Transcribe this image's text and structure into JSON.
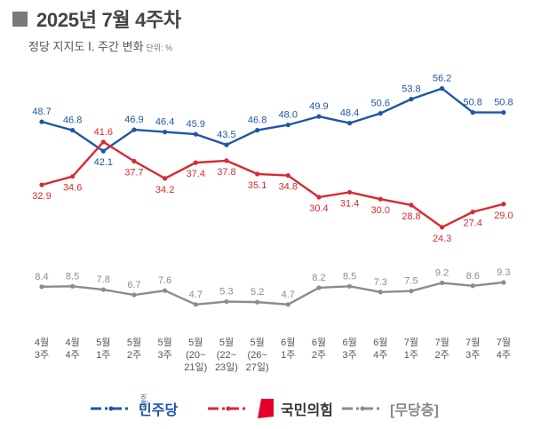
{
  "header": {
    "title": "2025년 7월 4주차",
    "subtitle": "정당 지지도 Ⅰ. 주간 변화",
    "unit": "단위: %"
  },
  "colors": {
    "democratic": "#1f56a6",
    "ppp": "#d62b33",
    "independent": "#8c8c8c"
  },
  "chart_data": {
    "type": "line",
    "title": "정당 지지도 Ⅰ. 주간 변화",
    "ylabel": "단위: %",
    "x": [
      [
        "4월",
        "3주"
      ],
      [
        "4월",
        "4주"
      ],
      [
        "5월",
        "1주"
      ],
      [
        "5월",
        "2주"
      ],
      [
        "5월",
        "3주"
      ],
      [
        "5월",
        "(20~",
        "21일)"
      ],
      [
        "5월",
        "(22~",
        "23일)"
      ],
      [
        "5월",
        "(26~",
        "27일)"
      ],
      [
        "6월",
        "1주"
      ],
      [
        "6월",
        "2주"
      ],
      [
        "6월",
        "3주"
      ],
      [
        "6월",
        "4주"
      ],
      [
        "7월",
        "1주"
      ],
      [
        "7월",
        "2주"
      ],
      [
        "7월",
        "3주"
      ],
      [
        "7월",
        "4주"
      ]
    ],
    "series": [
      {
        "name": "민주당",
        "values": [
          48.7,
          46.8,
          42.1,
          46.9,
          46.4,
          45.9,
          43.5,
          46.8,
          48.0,
          49.9,
          48.4,
          50.6,
          53.8,
          56.2,
          50.8,
          50.8
        ]
      },
      {
        "name": "국민의힘",
        "values": [
          32.9,
          34.6,
          41.6,
          37.7,
          34.2,
          37.4,
          37.8,
          35.1,
          34.8,
          30.4,
          31.4,
          30.0,
          28.8,
          24.3,
          27.4,
          29.0
        ]
      },
      {
        "name": "[무당층]",
        "values": [
          8.4,
          8.5,
          7.8,
          6.7,
          7.6,
          4.7,
          5.3,
          5.2,
          4.7,
          8.2,
          8.5,
          7.3,
          7.5,
          9.2,
          8.6,
          9.3
        ]
      }
    ],
    "legend": "bottom",
    "grid": false
  },
  "legend": {
    "democratic": "민주당",
    "democratic_sub": "더불어",
    "ppp": "국민의힘",
    "independent": "[무당층]"
  }
}
